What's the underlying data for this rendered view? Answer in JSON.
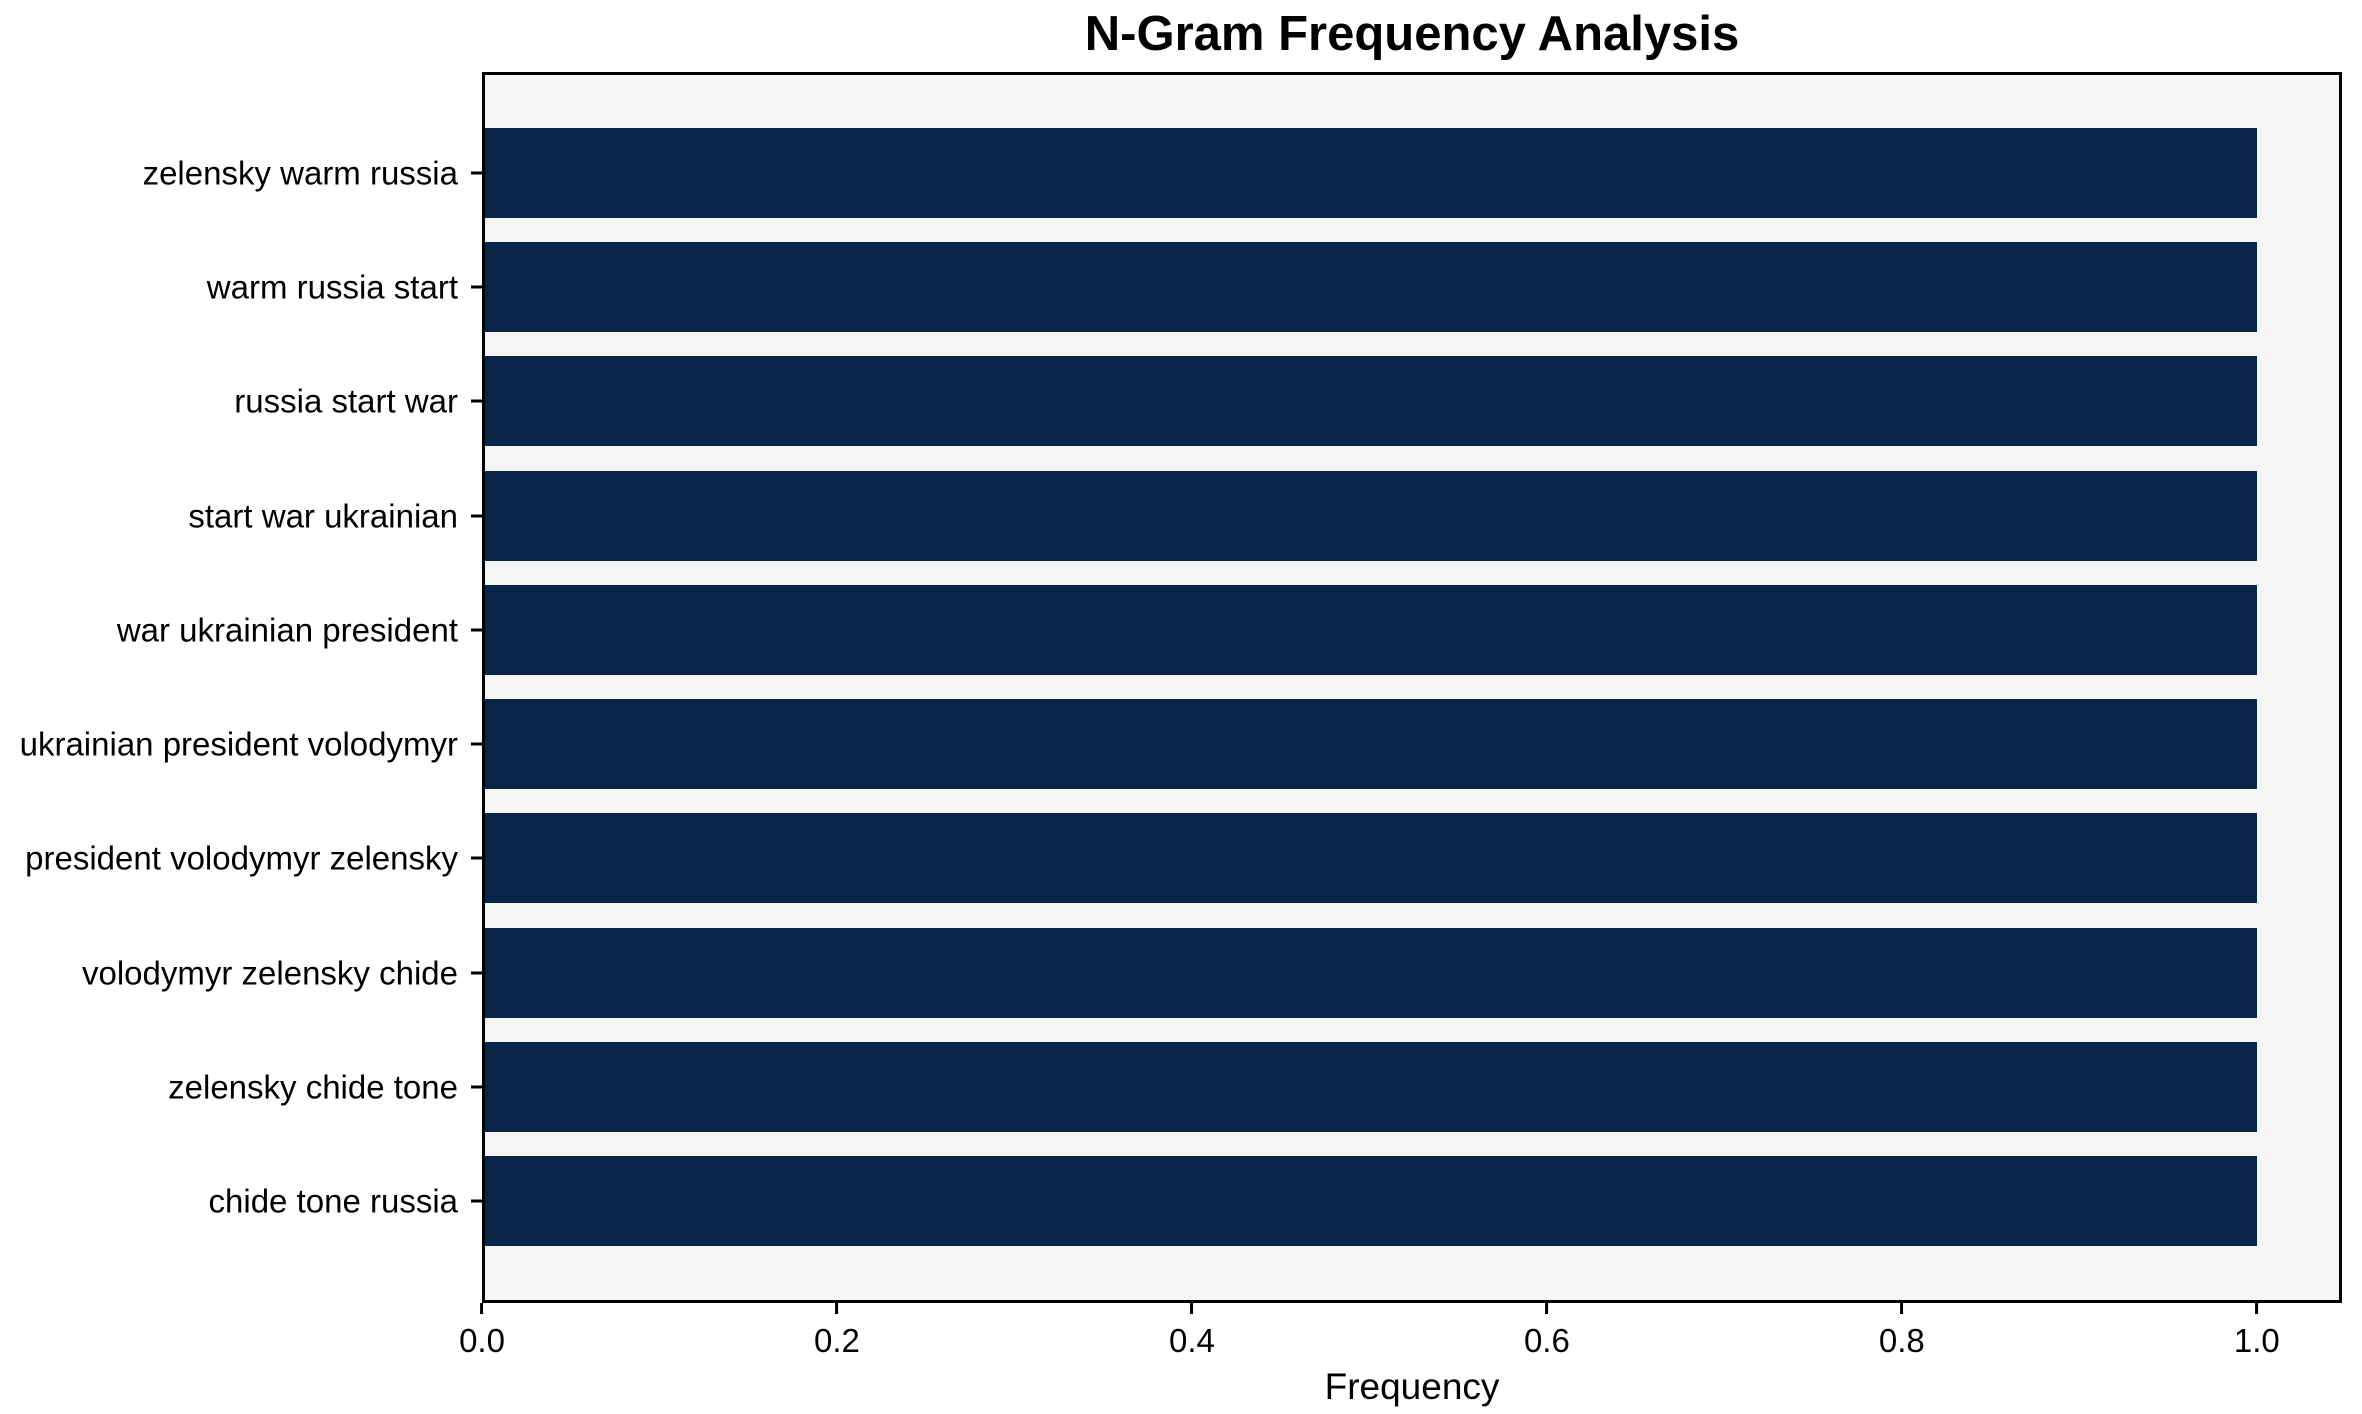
{
  "chart_data": {
    "type": "bar",
    "orientation": "horizontal",
    "title": "N-Gram Frequency Analysis",
    "xlabel": "Frequency",
    "categories": [
      "zelensky warm russia",
      "warm russia start",
      "russia start war",
      "start war ukrainian",
      "war ukrainian president",
      "ukrainian president volodymyr",
      "president volodymyr zelensky",
      "volodymyr zelensky chide",
      "zelensky chide tone",
      "chide tone russia"
    ],
    "values": [
      1.0,
      1.0,
      1.0,
      1.0,
      1.0,
      1.0,
      1.0,
      1.0,
      1.0,
      1.0
    ],
    "xticks": [
      0.0,
      0.2,
      0.4,
      0.6,
      0.8,
      1.0
    ],
    "xtick_labels": [
      "0.0",
      "0.2",
      "0.4",
      "0.6",
      "0.8",
      "1.0"
    ],
    "xlim": [
      0.0,
      1.048
    ],
    "grid": false,
    "legend": false,
    "colors": {
      "bar": "#082449",
      "plot_background": "#f5f5f5",
      "figure_background": "#ffffff",
      "spine": "#000000",
      "text": "#000000"
    }
  }
}
